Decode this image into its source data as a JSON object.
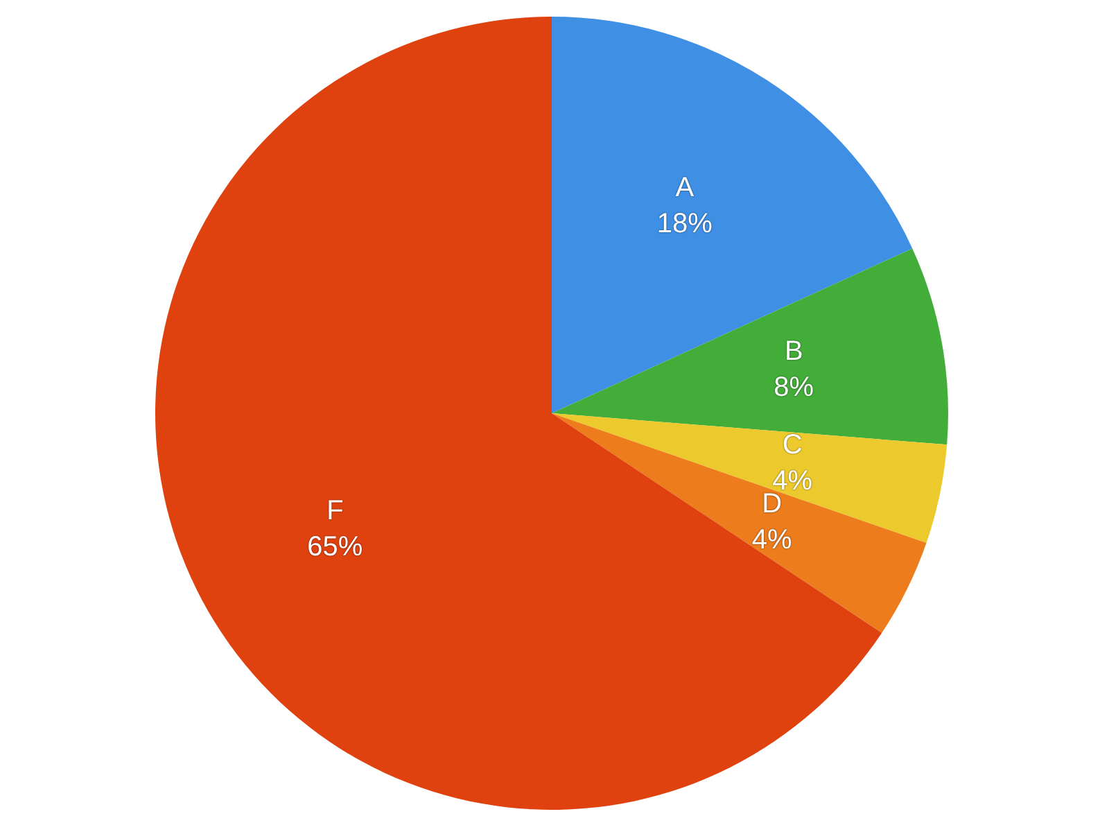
{
  "chart_data": {
    "type": "pie",
    "categories": [
      "A",
      "B",
      "C",
      "D",
      "F"
    ],
    "values": [
      18,
      8,
      4,
      4,
      65
    ],
    "colors": [
      "#3f8fe4",
      "#43ad3a",
      "#ecc92c",
      "#ec7c1c",
      "#e0420f"
    ],
    "value_labels": [
      "18%",
      "8%",
      "4%",
      "4%",
      "65%"
    ],
    "legend": false
  }
}
